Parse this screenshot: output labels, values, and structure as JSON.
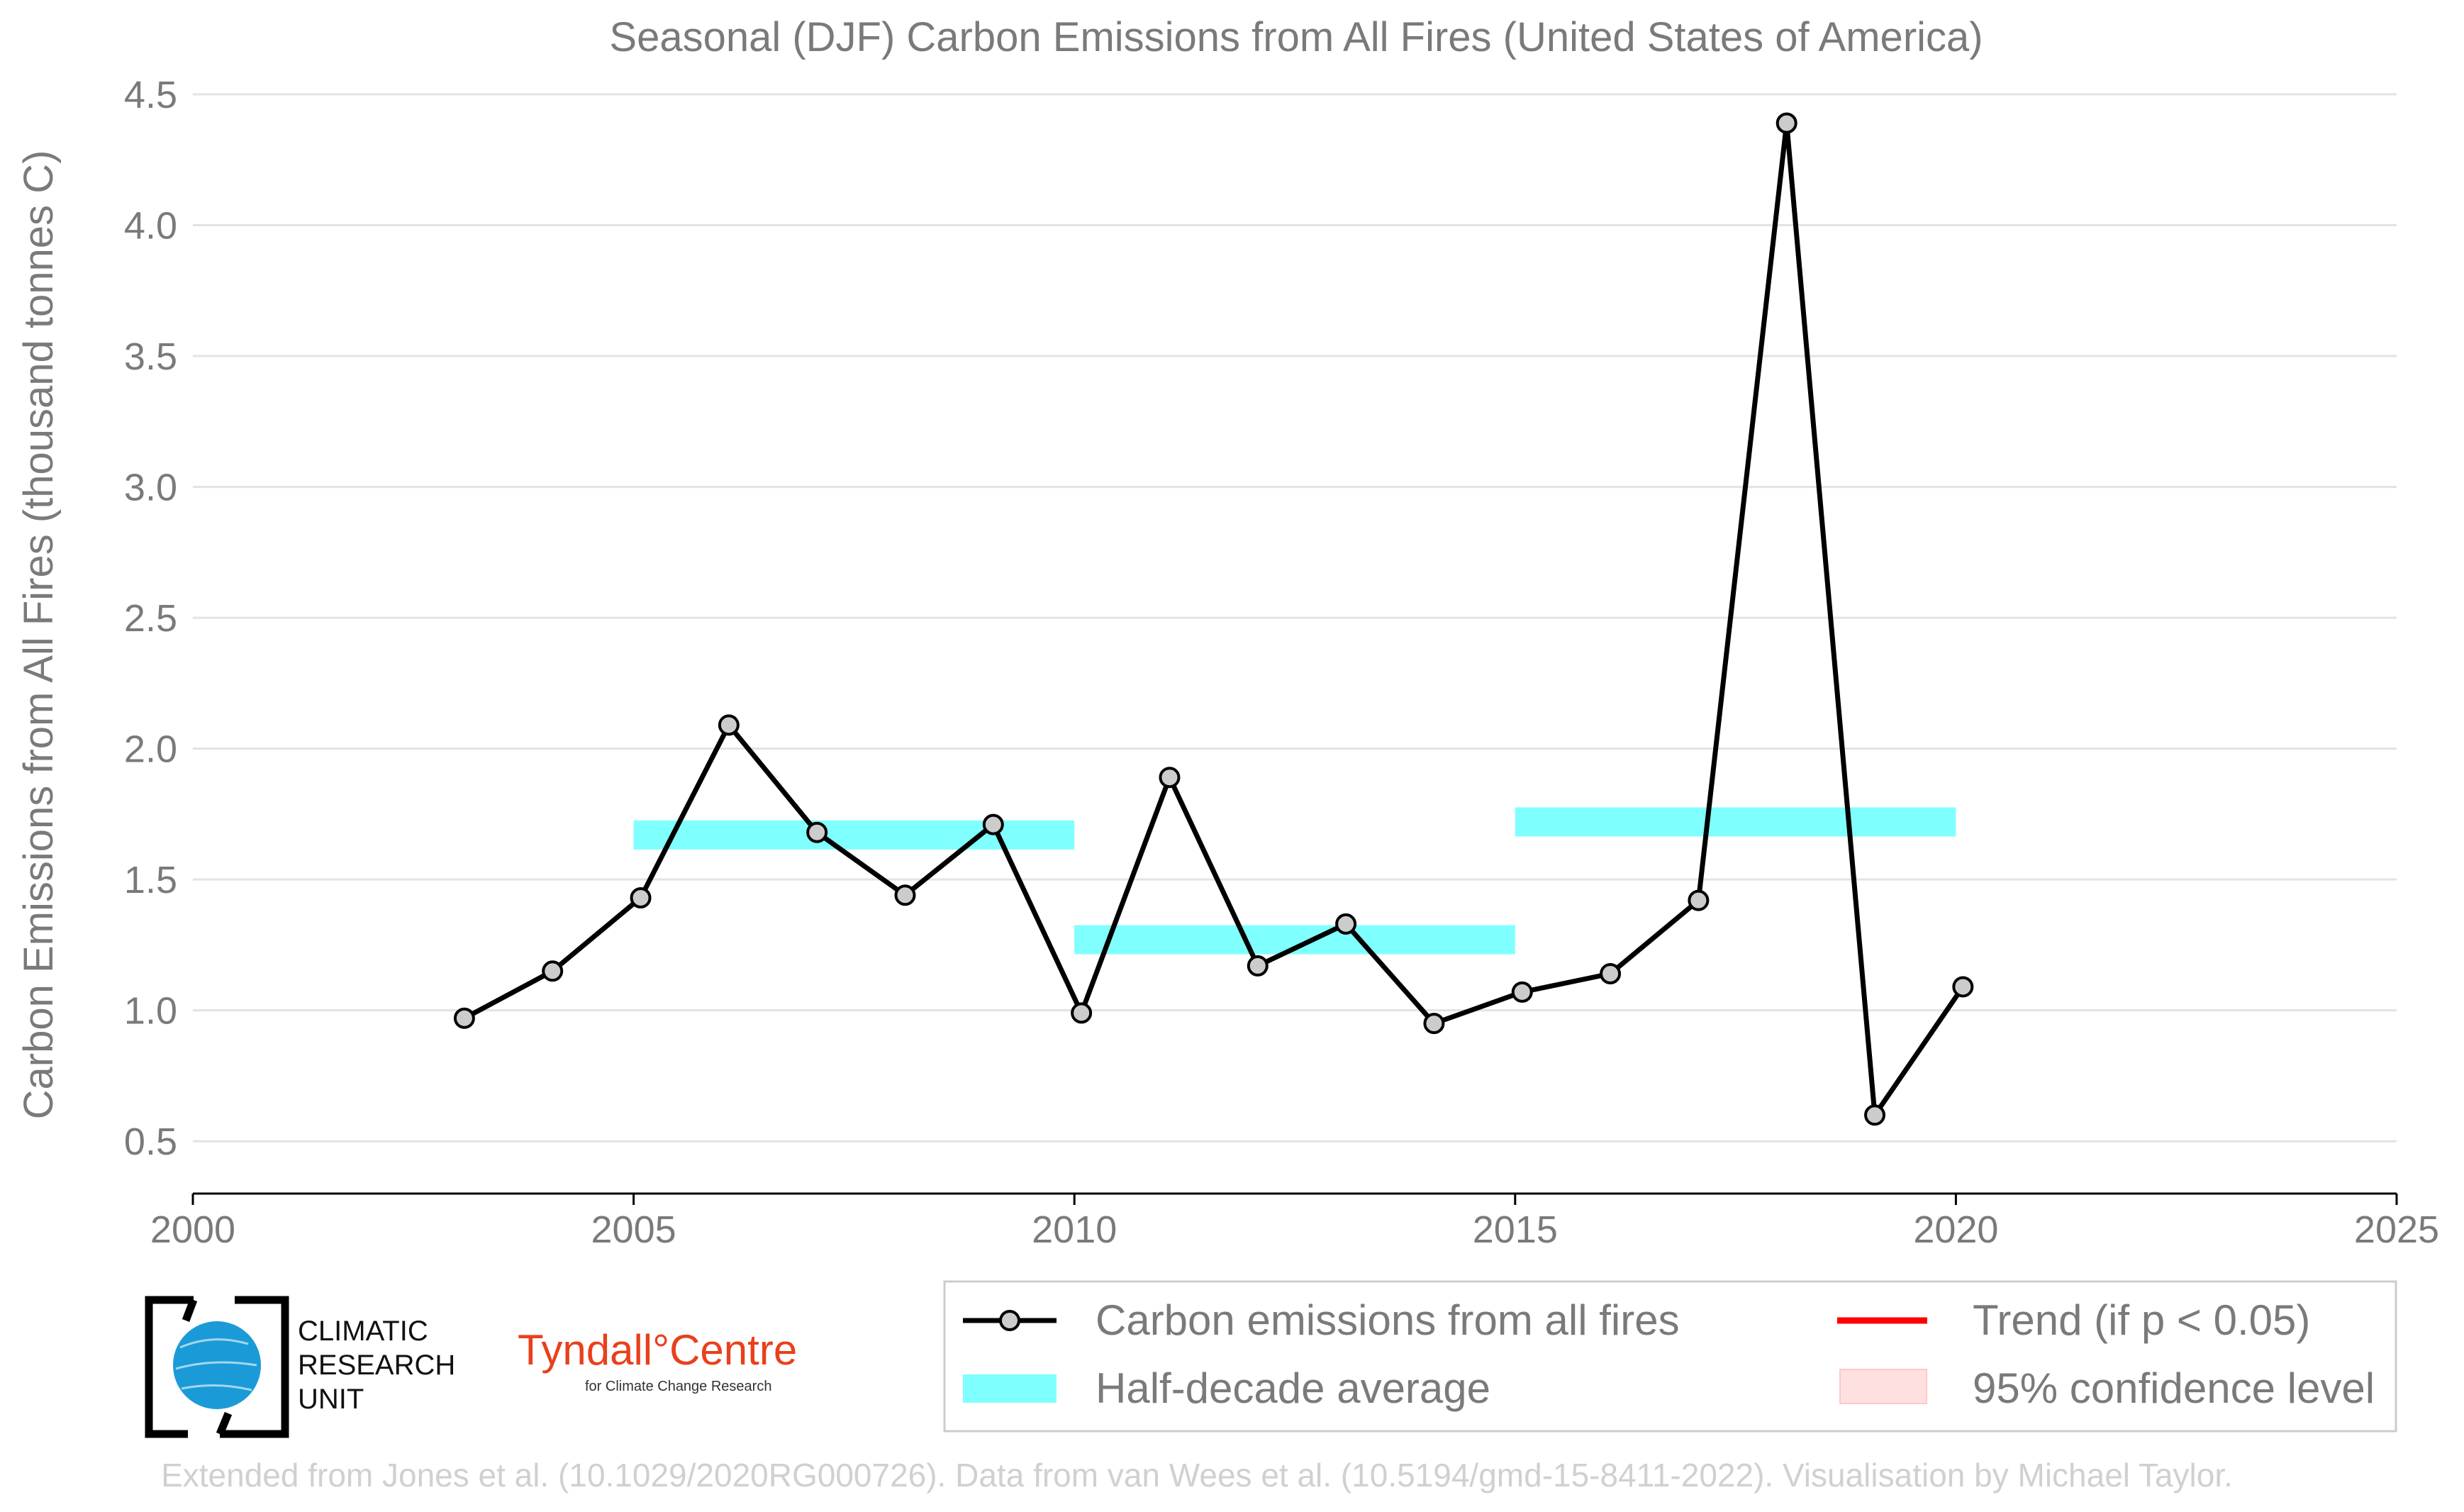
{
  "chart_data": {
    "type": "line",
    "title": "Seasonal (DJF) Carbon Emissions from All Fires (United States of America)",
    "xlabel": "",
    "ylabel": "Carbon Emissions from All Fires (thousand tonnes C)",
    "xlim": [
      2000,
      2025
    ],
    "ylim": [
      0.3,
      4.5
    ],
    "xticks": [
      2000,
      2005,
      2010,
      2015,
      2020,
      2025
    ],
    "xtick_labels": [
      "2000",
      "2005",
      "2010",
      "2015",
      "2020",
      "2025"
    ],
    "yticks": [
      0.5,
      1.0,
      1.5,
      2.0,
      2.5,
      3.0,
      3.5,
      4.0,
      4.5
    ],
    "ytick_labels": [
      "0.5",
      "1.0",
      "1.5",
      "2.0",
      "2.5",
      "3.0",
      "3.5",
      "4.0",
      "4.5"
    ],
    "grid": "horizontal",
    "legend_position": "bottom-right",
    "series": [
      {
        "name": "Carbon emissions from all fires",
        "color": "#000000",
        "marker_fill": "#cccccc",
        "x": [
          2003.08,
          2004.08,
          2005.08,
          2006.08,
          2007.08,
          2008.08,
          2009.08,
          2010.08,
          2011.08,
          2012.08,
          2013.08,
          2014.08,
          2015.08,
          2016.08,
          2017.08,
          2018.08,
          2019.08,
          2020.08
        ],
        "y": [
          0.97,
          1.15,
          1.43,
          2.09,
          1.68,
          1.44,
          1.71,
          0.99,
          1.89,
          1.17,
          1.33,
          0.95,
          1.07,
          1.14,
          1.42,
          4.39,
          0.6,
          1.09
        ]
      }
    ],
    "half_decade_average": {
      "name": "Half-decade average",
      "color": "#80ffff",
      "periods": [
        {
          "x0": 2005,
          "x1": 2010,
          "y": 1.67
        },
        {
          "x0": 2010,
          "x1": 2015,
          "y": 1.27
        },
        {
          "x0": 2015,
          "x1": 2020,
          "y": 1.72
        }
      ]
    },
    "legend": [
      {
        "label": "Carbon emissions from all fires",
        "kind": "line-marker",
        "color": "#000000"
      },
      {
        "label": "Trend (if p < 0.05)",
        "kind": "line",
        "color": "#ff0000"
      },
      {
        "label": "Half-decade average",
        "kind": "band",
        "color": "#80ffff"
      },
      {
        "label": "95% confidence level",
        "kind": "patch",
        "color": "#ffe0e0"
      }
    ]
  },
  "logos": {
    "cru": [
      "CLIMATIC",
      "RESEARCH",
      "UNIT"
    ],
    "tyndall": "Tyndall°Centre",
    "tyndall_sub": "for Climate Change Research"
  },
  "credit": "Extended from Jones et al. (10.1029/2020RG000726). Data from van Wees et al. (10.5194/gmd-15-8411-2022). Visualisation by Michael Taylor."
}
